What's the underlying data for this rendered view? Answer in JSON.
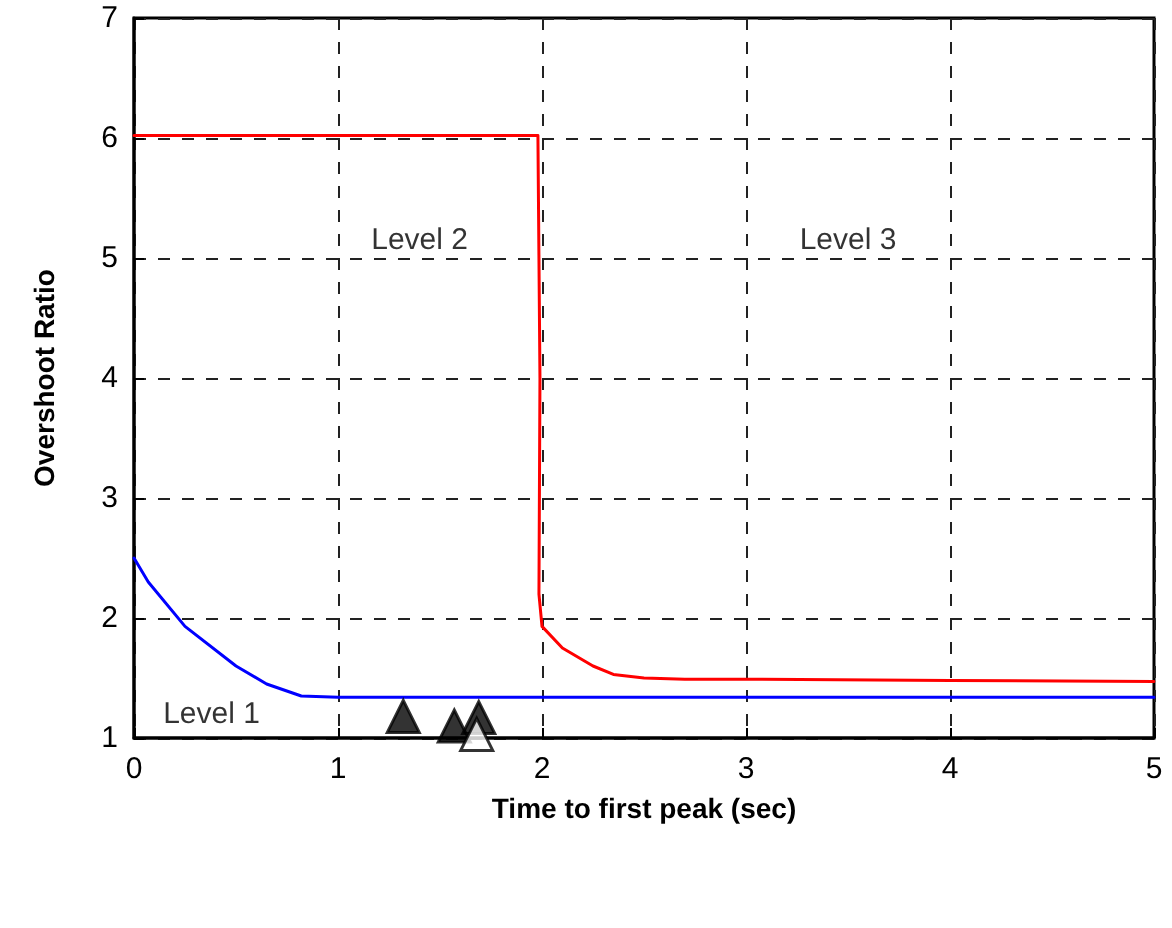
{
  "chart_data": {
    "type": "line",
    "xlabel": "Time to first peak (sec)",
    "ylabel": "Overshoot Ratio",
    "xlim": [
      0,
      5
    ],
    "xticks": [
      0,
      1,
      2,
      3,
      4,
      5
    ],
    "ylim": [
      1,
      7
    ],
    "yticks": [
      1,
      2,
      3,
      4,
      5,
      6,
      7
    ],
    "grid": true,
    "marker": "none",
    "line_style": "solid",
    "annotations": [
      "Level 1",
      "Level 2",
      "Level 3"
    ],
    "series": [
      {
        "color": "#0000ff",
        "x": [
          0,
          0.07,
          0.25,
          0.5,
          0.65,
          0.82,
          1,
          5
        ],
        "values": [
          2.5,
          2.3,
          1.93,
          1.6,
          1.45,
          1.35,
          1.34,
          1.34
        ]
      },
      {
        "color": "#ff0000",
        "x": [
          0,
          1.98,
          1.99,
          1.985,
          2.0,
          2.1,
          2.25,
          2.35,
          2.5,
          2.7,
          3,
          4,
          5
        ],
        "values": [
          6.02,
          6.02,
          4,
          2.2,
          1.93,
          1.75,
          1.6,
          1.53,
          1.5,
          1.49,
          1.49,
          1.48,
          1.47
        ]
      },
      {
        "type": "scatter",
        "marker": "triangle",
        "color": "#000000",
        "x": [
          1.32,
          1.57,
          1.69
        ],
        "values": [
          1.18,
          1.1,
          1.17
        ]
      },
      {
        "type": "scatter",
        "marker": "triangle",
        "color": "#ffffff",
        "x": [
          1.68
        ],
        "values": [
          1.03
        ]
      }
    ]
  }
}
